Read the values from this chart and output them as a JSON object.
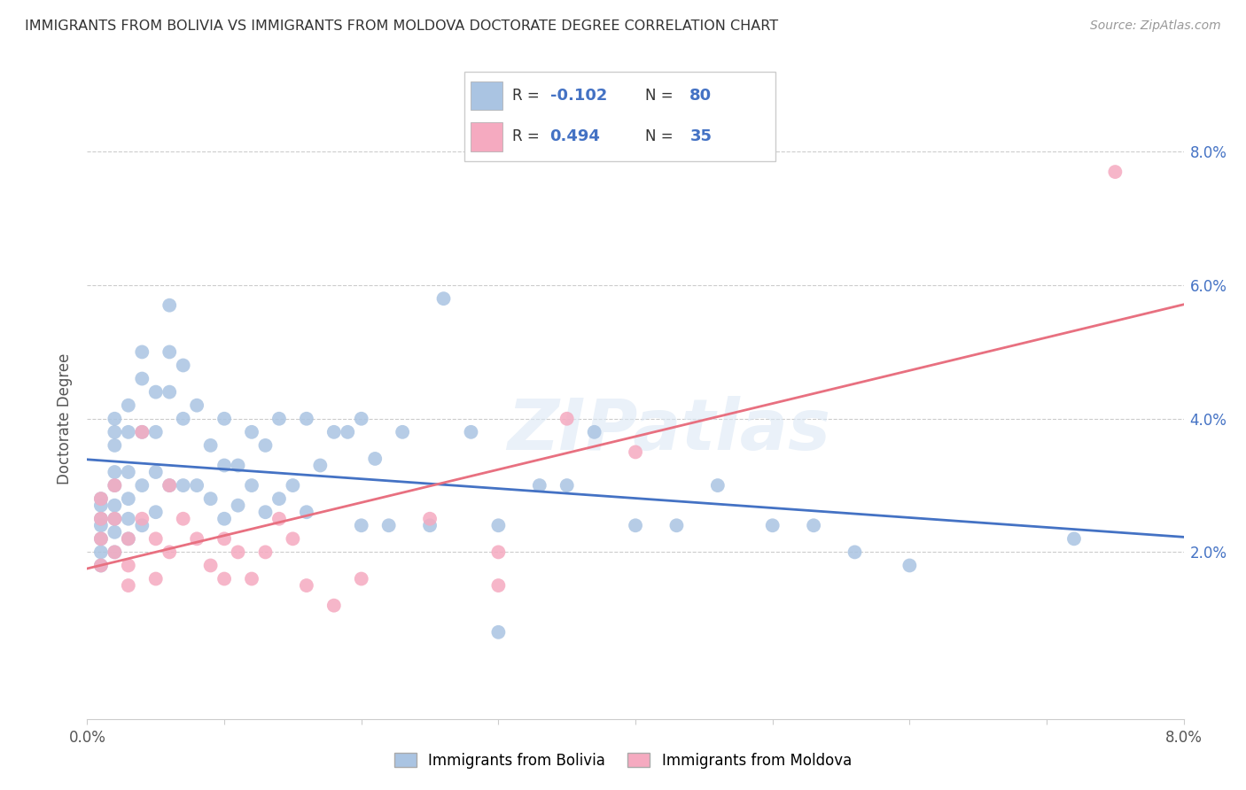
{
  "title": "IMMIGRANTS FROM BOLIVIA VS IMMIGRANTS FROM MOLDOVA DOCTORATE DEGREE CORRELATION CHART",
  "source": "Source: ZipAtlas.com",
  "ylabel": "Doctorate Degree",
  "xmin": 0.0,
  "xmax": 0.08,
  "ymin": -0.005,
  "ymax": 0.085,
  "ytick_values": [
    0.02,
    0.04,
    0.06,
    0.08
  ],
  "ytick_labels": [
    "2.0%",
    "4.0%",
    "6.0%",
    "8.0%"
  ],
  "legend_r_bolivia": "-0.102",
  "legend_n_bolivia": "80",
  "legend_r_moldova": "0.494",
  "legend_n_moldova": "35",
  "legend_label_bolivia": "Immigrants from Bolivia",
  "legend_label_moldova": "Immigrants from Moldova",
  "color_bolivia": "#aac4e2",
  "color_moldova": "#f5aac0",
  "color_bolivia_line": "#4472c4",
  "color_moldova_line": "#e87080",
  "watermark": "ZIPatlas",
  "bolivia_x": [
    0.001,
    0.001,
    0.001,
    0.001,
    0.001,
    0.001,
    0.001,
    0.002,
    0.002,
    0.002,
    0.002,
    0.002,
    0.002,
    0.002,
    0.002,
    0.002,
    0.003,
    0.003,
    0.003,
    0.003,
    0.003,
    0.003,
    0.004,
    0.004,
    0.004,
    0.004,
    0.004,
    0.005,
    0.005,
    0.005,
    0.005,
    0.006,
    0.006,
    0.006,
    0.006,
    0.007,
    0.007,
    0.007,
    0.008,
    0.008,
    0.009,
    0.009,
    0.01,
    0.01,
    0.01,
    0.011,
    0.011,
    0.012,
    0.012,
    0.013,
    0.013,
    0.014,
    0.014,
    0.015,
    0.016,
    0.016,
    0.017,
    0.018,
    0.019,
    0.02,
    0.02,
    0.021,
    0.022,
    0.023,
    0.025,
    0.026,
    0.028,
    0.03,
    0.03,
    0.033,
    0.035,
    0.037,
    0.04,
    0.043,
    0.046,
    0.05,
    0.053,
    0.056,
    0.06,
    0.072
  ],
  "bolivia_y": [
    0.028,
    0.027,
    0.025,
    0.024,
    0.022,
    0.02,
    0.018,
    0.04,
    0.038,
    0.036,
    0.032,
    0.03,
    0.027,
    0.025,
    0.023,
    0.02,
    0.042,
    0.038,
    0.032,
    0.028,
    0.025,
    0.022,
    0.05,
    0.046,
    0.038,
    0.03,
    0.024,
    0.044,
    0.038,
    0.032,
    0.026,
    0.057,
    0.05,
    0.044,
    0.03,
    0.048,
    0.04,
    0.03,
    0.042,
    0.03,
    0.036,
    0.028,
    0.04,
    0.033,
    0.025,
    0.033,
    0.027,
    0.038,
    0.03,
    0.036,
    0.026,
    0.04,
    0.028,
    0.03,
    0.04,
    0.026,
    0.033,
    0.038,
    0.038,
    0.04,
    0.024,
    0.034,
    0.024,
    0.038,
    0.024,
    0.058,
    0.038,
    0.024,
    0.008,
    0.03,
    0.03,
    0.038,
    0.024,
    0.024,
    0.03,
    0.024,
    0.024,
    0.02,
    0.018,
    0.022
  ],
  "moldova_x": [
    0.001,
    0.001,
    0.001,
    0.001,
    0.002,
    0.002,
    0.002,
    0.003,
    0.003,
    0.003,
    0.004,
    0.004,
    0.005,
    0.005,
    0.006,
    0.006,
    0.007,
    0.008,
    0.009,
    0.01,
    0.01,
    0.011,
    0.012,
    0.013,
    0.014,
    0.015,
    0.016,
    0.018,
    0.02,
    0.025,
    0.03,
    0.03,
    0.035,
    0.04,
    0.075
  ],
  "moldova_y": [
    0.028,
    0.025,
    0.022,
    0.018,
    0.03,
    0.025,
    0.02,
    0.022,
    0.018,
    0.015,
    0.038,
    0.025,
    0.022,
    0.016,
    0.03,
    0.02,
    0.025,
    0.022,
    0.018,
    0.022,
    0.016,
    0.02,
    0.016,
    0.02,
    0.025,
    0.022,
    0.015,
    0.012,
    0.016,
    0.025,
    0.02,
    0.015,
    0.04,
    0.035,
    0.077
  ]
}
